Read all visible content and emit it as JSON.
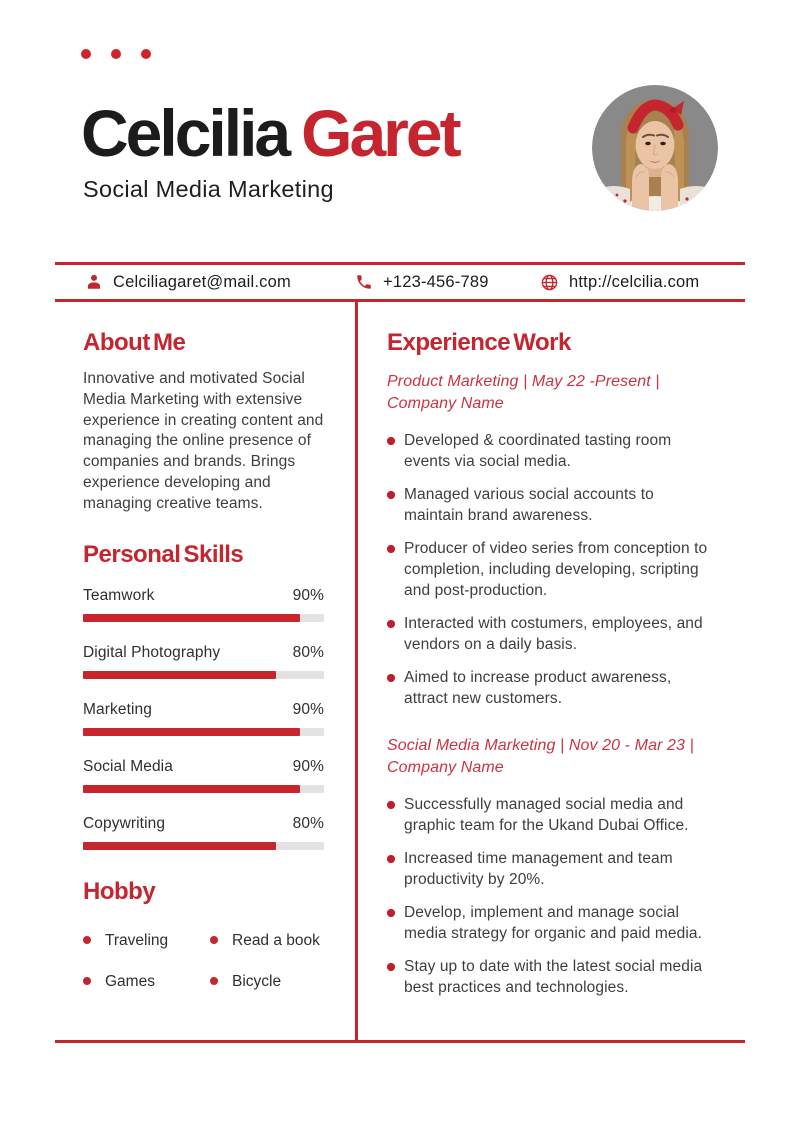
{
  "colors": {
    "accent": "#C5252E",
    "job_title_red": "#CC3340",
    "text_dark": "#1C1C1C",
    "text_body": "#3E3E3E",
    "bar_track": "#E3E3E3"
  },
  "header": {
    "first_name": "Celcilia",
    "last_name": "Garet",
    "role": "Social Media Marketing"
  },
  "contact": {
    "email": "Celciliagaret@mail.com",
    "phone": "+123-456-789",
    "website": "http://celcilia.com"
  },
  "about": {
    "heading": "About Me",
    "body": "Innovative and motivated Social Media Marketing with extensive experience in creating content and managing the online presence of companies and brands. Brings experience developing and managing creative teams."
  },
  "skills": {
    "heading": "Personal Skills",
    "items": [
      {
        "label": "Teamwork",
        "percent": "90%",
        "value": 90
      },
      {
        "label": "Digital Photography",
        "percent": "80%",
        "value": 80
      },
      {
        "label": "Marketing",
        "percent": "90%",
        "value": 90
      },
      {
        "label": "Social Media",
        "percent": "90%",
        "value": 90
      },
      {
        "label": "Copywriting",
        "percent": "80%",
        "value": 80
      }
    ]
  },
  "hobby": {
    "heading": "Hobby",
    "items": [
      "Traveling",
      "Read a book",
      "Games",
      "Bicycle"
    ]
  },
  "experience": {
    "heading": "Experience Work",
    "jobs": [
      {
        "title": "Product Marketing | May 22 -Present | Company Name",
        "bullets": [
          "Developed & coordinated tasting room events via social media.",
          "Managed various social accounts to maintain brand awareness.",
          "Producer of video series from conception to completion, including developing, scripting and post-production.",
          "Interacted with costumers, employees, and vendors on a daily basis.",
          "Aimed to increase product awareness, attract new customers."
        ]
      },
      {
        "title": "Social Media Marketing | Nov 20 - Mar 23 | Company Name",
        "bullets": [
          "Successfully managed social media and graphic team for the Ukand Dubai Office.",
          "Increased time management and team productivity by 20%.",
          "Develop, implement and manage social media strategy for organic and paid media.",
          "Stay up to date with the latest social media best practices and technologies."
        ]
      }
    ]
  }
}
